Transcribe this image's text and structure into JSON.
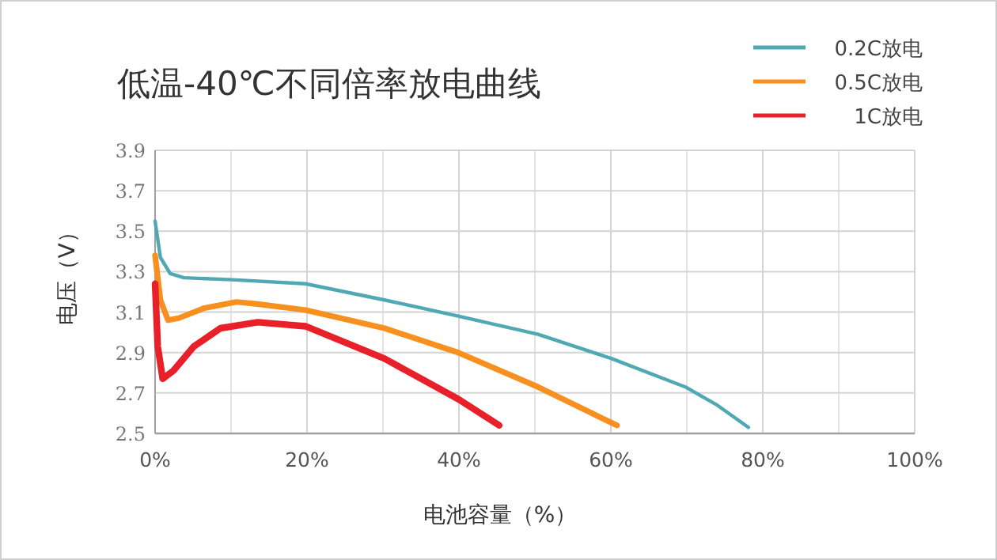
{
  "chart_data": {
    "type": "line",
    "title": "低温-40℃不同倍率放电曲线",
    "xlabel": "电池容量（%）",
    "ylabel": "电压（V）",
    "xlim": [
      0,
      100
    ],
    "ylim": [
      2.5,
      3.9
    ],
    "xticks": [
      {
        "value": 0,
        "label": "0%"
      },
      {
        "value": 20,
        "label": "20%"
      },
      {
        "value": 40,
        "label": "40%"
      },
      {
        "value": 60,
        "label": "60%"
      },
      {
        "value": 80,
        "label": "80%"
      },
      {
        "value": 100,
        "label": "100%"
      }
    ],
    "yticks": [
      2.5,
      2.7,
      2.9,
      3.1,
      3.3,
      3.5,
      3.7,
      3.9
    ],
    "grid": true,
    "legend": "top right",
    "series": [
      {
        "name": "0.2C放电",
        "color": "#4fa8b4",
        "x": [
          0,
          0.7,
          2.0,
          3.8,
          10.1,
          19.8,
          30.2,
          39.9,
          50.4,
          60.1,
          69.8,
          74,
          78.1
        ],
        "values": [
          3.55,
          3.37,
          3.29,
          3.27,
          3.26,
          3.24,
          3.16,
          3.08,
          2.99,
          2.87,
          2.73,
          2.64,
          2.53
        ]
      },
      {
        "name": "0.5C放电",
        "color": "#f7901e",
        "x": [
          0,
          0.7,
          1.7,
          3.1,
          6.5,
          10.7,
          13.5,
          19.8,
          30.2,
          39.9,
          50.4,
          60.8
        ],
        "values": [
          3.38,
          3.16,
          3.06,
          3.07,
          3.12,
          3.15,
          3.14,
          3.11,
          3.02,
          2.9,
          2.73,
          2.54
        ]
      },
      {
        "name": "1C放电",
        "color": "#e8202a",
        "x": [
          0,
          0.35,
          1.0,
          2.4,
          5.1,
          8.6,
          13.5,
          19.8,
          30.2,
          39.9,
          45.3
        ],
        "values": [
          3.24,
          2.93,
          2.77,
          2.81,
          2.93,
          3.02,
          3.05,
          3.03,
          2.87,
          2.67,
          2.54
        ]
      }
    ]
  }
}
